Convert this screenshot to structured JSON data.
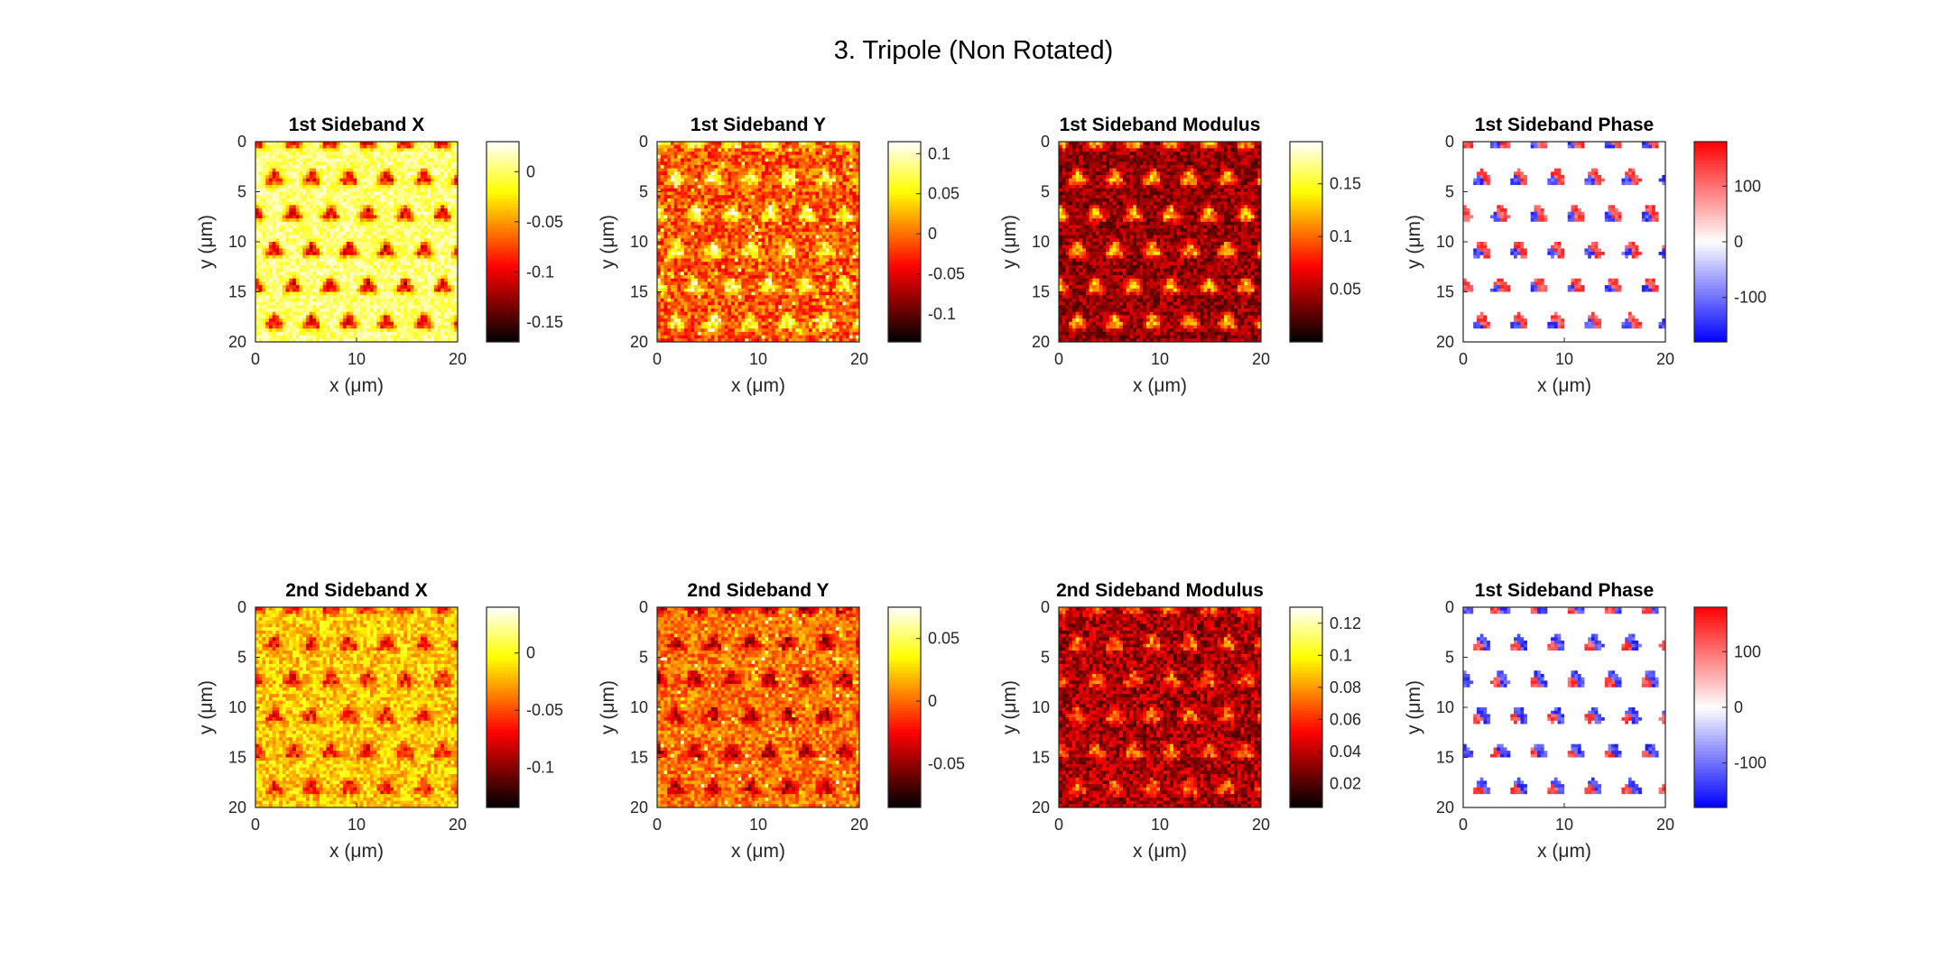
{
  "figure": {
    "title": "3. Tripole (Non Rotated)"
  },
  "chart_data": [
    {
      "type": "heatmap",
      "title": "1st Sideband X",
      "xlabel": "x (μm)",
      "ylabel": "y (μm)",
      "xlim": [
        0,
        20
      ],
      "ylim": [
        0,
        20
      ],
      "xticks": [
        "0",
        "10",
        "20"
      ],
      "yticks": [
        "0",
        "5",
        "10",
        "15",
        "20"
      ],
      "colormap": "hot",
      "clim": [
        -0.17,
        0.03
      ],
      "colorbar_ticks": [
        0,
        -0.05,
        -0.1,
        -0.15
      ],
      "colorbar_tick_labels": [
        "0",
        "-0.05",
        "-0.1",
        "-0.15"
      ],
      "pattern": "background ≈ 0 (yellow) with periodic dark-red tripole features ≈ -0.1"
    },
    {
      "type": "heatmap",
      "title": "1st Sideband Y",
      "xlabel": "x (μm)",
      "ylabel": "y (μm)",
      "xlim": [
        0,
        20
      ],
      "ylim": [
        0,
        20
      ],
      "xticks": [
        "0",
        "10",
        "20"
      ],
      "yticks": [
        "0",
        "5",
        "10",
        "15",
        "20"
      ],
      "colormap": "hot",
      "clim": [
        -0.135,
        0.115
      ],
      "colorbar_ticks": [
        0.1,
        0.05,
        0,
        -0.05,
        -0.1
      ],
      "colorbar_tick_labels": [
        "0.1",
        "0.05",
        "0",
        "-0.05",
        "-0.1"
      ],
      "pattern": "orange background with yellow (positive) features and horizontal streaks"
    },
    {
      "type": "heatmap",
      "title": "1st Sideband Modulus",
      "xlabel": "x (μm)",
      "ylabel": "y (μm)",
      "xlim": [
        0,
        20
      ],
      "ylim": [
        0,
        20
      ],
      "xticks": [
        "0",
        "10",
        "20"
      ],
      "yticks": [
        "0",
        "5",
        "10",
        "15",
        "20"
      ],
      "colormap": "hot",
      "clim": [
        0,
        0.19
      ],
      "colorbar_ticks": [
        0.15,
        0.1,
        0.05
      ],
      "colorbar_tick_labels": [
        "0.15",
        "0.1",
        "0.05"
      ],
      "pattern": "dark red noisy background with bright orange tripole features ≈ 0.12"
    },
    {
      "type": "heatmap",
      "title": "1st Sideband Phase",
      "xlabel": "x (μm)",
      "ylabel": "y (μm)",
      "xlim": [
        0,
        20
      ],
      "ylim": [
        0,
        20
      ],
      "xticks": [
        "0",
        "10",
        "20"
      ],
      "yticks": [
        "0",
        "5",
        "10",
        "15",
        "20"
      ],
      "colormap": "blue-white-red",
      "clim": [
        -180,
        180
      ],
      "colorbar_ticks": [
        100,
        0,
        -100
      ],
      "colorbar_tick_labels": [
        "100",
        "0",
        "-100"
      ],
      "pattern": "white background with red/blue tripole-shaped phase features"
    },
    {
      "type": "heatmap",
      "title": "2nd Sideband X",
      "xlabel": "x (μm)",
      "ylabel": "y (μm)",
      "xlim": [
        0,
        20
      ],
      "ylim": [
        0,
        20
      ],
      "xticks": [
        "0",
        "10",
        "20"
      ],
      "yticks": [
        "0",
        "5",
        "10",
        "15",
        "20"
      ],
      "colormap": "hot",
      "clim": [
        -0.135,
        0.04
      ],
      "colorbar_ticks": [
        0,
        -0.05,
        -0.1
      ],
      "colorbar_tick_labels": [
        "0",
        "-0.05",
        "-0.1"
      ],
      "pattern": "yellow-orange background with faint dark tripole features"
    },
    {
      "type": "heatmap",
      "title": "2nd Sideband Y",
      "xlabel": "x (μm)",
      "ylabel": "y (μm)",
      "xlim": [
        0,
        20
      ],
      "ylim": [
        0,
        20
      ],
      "xticks": [
        "0",
        "10",
        "20"
      ],
      "yticks": [
        "0",
        "5",
        "10",
        "15",
        "20"
      ],
      "colormap": "hot",
      "clim": [
        -0.085,
        0.075
      ],
      "colorbar_ticks": [
        0.05,
        0,
        -0.05
      ],
      "colorbar_tick_labels": [
        "0.05",
        "0",
        "-0.05"
      ],
      "pattern": "orange background with darker tripole features and horizontal streaks"
    },
    {
      "type": "heatmap",
      "title": "2nd Sideband Modulus",
      "xlabel": "x (μm)",
      "ylabel": "y (μm)",
      "xlim": [
        0,
        20
      ],
      "ylim": [
        0,
        20
      ],
      "xticks": [
        "0",
        "10",
        "20"
      ],
      "yticks": [
        "0",
        "5",
        "10",
        "15",
        "20"
      ],
      "colormap": "hot",
      "clim": [
        0.005,
        0.13
      ],
      "colorbar_ticks": [
        0.12,
        0.1,
        0.08,
        0.06,
        0.04,
        0.02
      ],
      "colorbar_tick_labels": [
        "0.12",
        "0.1",
        "0.08",
        "0.06",
        "0.04",
        "0.02"
      ],
      "pattern": "dark red noisy background with orange tripole features"
    },
    {
      "type": "heatmap",
      "title": "1st Sideband Phase",
      "xlabel": "x (μm)",
      "ylabel": "y (μm)",
      "xlim": [
        0,
        20
      ],
      "ylim": [
        0,
        20
      ],
      "xticks": [
        "0",
        "10",
        "20"
      ],
      "yticks": [
        "0",
        "5",
        "10",
        "15",
        "20"
      ],
      "colormap": "blue-white-red",
      "clim": [
        -180,
        180
      ],
      "colorbar_ticks": [
        100,
        0,
        -100
      ],
      "colorbar_tick_labels": [
        "100",
        "0",
        "-100"
      ],
      "pattern": "white background with blue/red tripole-shaped phase features"
    }
  ]
}
